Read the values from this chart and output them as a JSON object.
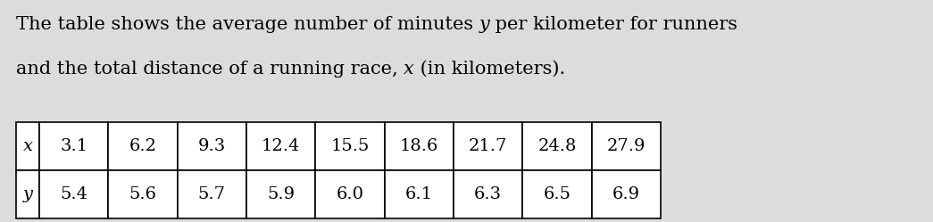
{
  "text_parts_line1": [
    [
      "The table shows the average number of minutes ",
      false
    ],
    [
      "y",
      true
    ],
    [
      " per kilometer for runners",
      false
    ]
  ],
  "text_parts_line2": [
    [
      "and the total distance of a running race, ",
      false
    ],
    [
      "x",
      true
    ],
    [
      " (in kilometers).",
      false
    ]
  ],
  "x_label": "x",
  "y_label": "y",
  "x_values": [
    "3.1",
    "6.2",
    "9.3",
    "12.4",
    "15.5",
    "18.6",
    "21.7",
    "24.8",
    "27.9"
  ],
  "y_values": [
    "5.4",
    "5.6",
    "5.7",
    "5.9",
    "6.0",
    "6.1",
    "6.3",
    "6.5",
    "6.9"
  ],
  "bg_color": "#dcdcdc",
  "table_bg": "#ffffff",
  "font_size_text": 15,
  "font_size_table": 14,
  "fig_width": 10.45,
  "fig_height": 2.49,
  "dpi": 100
}
